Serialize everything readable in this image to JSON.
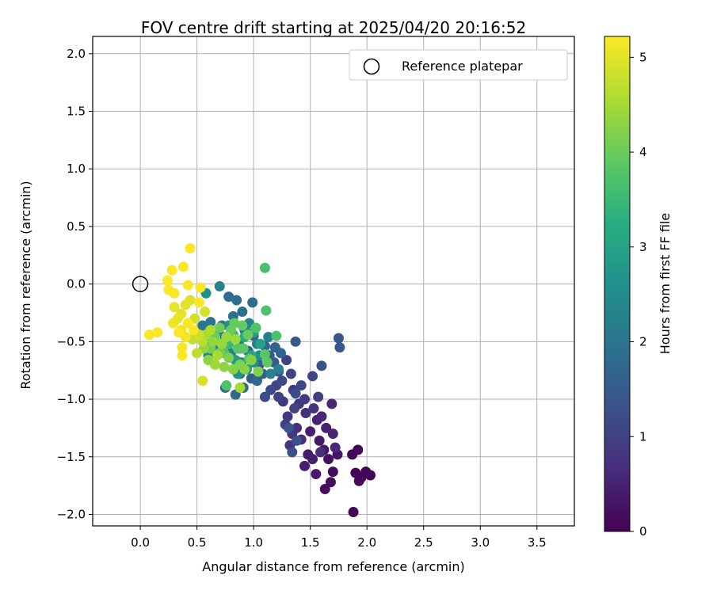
{
  "chart_data": {
    "type": "scatter",
    "title": "FOV centre drift starting at 2025/04/20 20:16:52",
    "xlabel": "Angular distance from reference (arcmin)",
    "ylabel": "Rotation from reference (arcmin)",
    "xlim": [
      -0.42,
      3.83
    ],
    "ylim": [
      -2.1,
      2.15
    ],
    "xticks": [
      "0.0",
      "0.5",
      "1.0",
      "1.5",
      "2.0",
      "2.5",
      "3.0",
      "3.5"
    ],
    "yticks": [
      "2.0",
      "1.5",
      "1.0",
      "0.5",
      "0.0",
      "−0.5",
      "−1.0",
      "−1.5",
      "−2.0"
    ],
    "grid": true,
    "legend": {
      "placement": "top-right",
      "entries": [
        "Reference platepar"
      ]
    },
    "reference_point": {
      "x": 0.0,
      "y": 0.0
    },
    "colorbar": {
      "label": "Hours from first FF file",
      "min": 0,
      "max": 5.22,
      "ticks": [
        "0",
        "1",
        "2",
        "3",
        "4",
        "5"
      ],
      "colormap": "viridis"
    },
    "points": [
      {
        "x": 1.88,
        "y": -1.98,
        "h": 0.05
      },
      {
        "x": 1.92,
        "y": -1.44,
        "h": 0.05
      },
      {
        "x": 1.95,
        "y": -1.68,
        "h": 0.05
      },
      {
        "x": 2.03,
        "y": -1.66,
        "h": 0.05
      },
      {
        "x": 1.99,
        "y": -1.63,
        "h": 0.05
      },
      {
        "x": 1.9,
        "y": -1.64,
        "h": 0.1
      },
      {
        "x": 1.87,
        "y": -1.48,
        "h": 0.1
      },
      {
        "x": 1.93,
        "y": -1.71,
        "h": 0.1
      },
      {
        "x": 1.7,
        "y": -1.63,
        "h": 0.15
      },
      {
        "x": 1.68,
        "y": -1.72,
        "h": 0.2
      },
      {
        "x": 1.63,
        "y": -1.78,
        "h": 0.2
      },
      {
        "x": 1.66,
        "y": -1.52,
        "h": 0.25
      },
      {
        "x": 1.74,
        "y": -1.48,
        "h": 0.3
      },
      {
        "x": 1.62,
        "y": -1.44,
        "h": 0.3
      },
      {
        "x": 1.55,
        "y": -1.65,
        "h": 0.35
      },
      {
        "x": 1.58,
        "y": -1.36,
        "h": 0.35
      },
      {
        "x": 1.52,
        "y": -1.52,
        "h": 0.4
      },
      {
        "x": 1.48,
        "y": -1.48,
        "h": 0.4
      },
      {
        "x": 1.45,
        "y": -1.58,
        "h": 0.45
      },
      {
        "x": 1.5,
        "y": -1.28,
        "h": 0.45
      },
      {
        "x": 1.56,
        "y": -1.18,
        "h": 0.5
      },
      {
        "x": 1.64,
        "y": -1.25,
        "h": 0.5
      },
      {
        "x": 1.6,
        "y": -1.15,
        "h": 0.55
      },
      {
        "x": 1.7,
        "y": -1.3,
        "h": 0.55
      },
      {
        "x": 1.69,
        "y": -1.04,
        "h": 0.6
      },
      {
        "x": 1.72,
        "y": -1.42,
        "h": 0.6
      },
      {
        "x": 1.59,
        "y": -1.46,
        "h": 0.65
      },
      {
        "x": 1.42,
        "y": -1.35,
        "h": 0.65
      },
      {
        "x": 1.38,
        "y": -1.25,
        "h": 0.7
      },
      {
        "x": 1.46,
        "y": -1.12,
        "h": 0.7
      },
      {
        "x": 1.53,
        "y": -1.08,
        "h": 0.75
      },
      {
        "x": 1.34,
        "y": -1.3,
        "h": 0.75
      },
      {
        "x": 1.32,
        "y": -1.4,
        "h": 0.8
      },
      {
        "x": 1.4,
        "y": -1.04,
        "h": 0.8
      },
      {
        "x": 1.3,
        "y": -1.15,
        "h": 0.85
      },
      {
        "x": 1.26,
        "y": -1.02,
        "h": 0.85
      },
      {
        "x": 1.35,
        "y": -0.92,
        "h": 0.9
      },
      {
        "x": 1.45,
        "y": -1.0,
        "h": 0.9
      },
      {
        "x": 1.57,
        "y": -0.98,
        "h": 0.95
      },
      {
        "x": 1.28,
        "y": -1.22,
        "h": 0.95
      },
      {
        "x": 1.22,
        "y": -0.98,
        "h": 1.0
      },
      {
        "x": 1.36,
        "y": -1.08,
        "h": 1.0
      },
      {
        "x": 1.29,
        "y": -0.66,
        "h": 1.0
      },
      {
        "x": 1.33,
        "y": -0.78,
        "h": 1.05
      },
      {
        "x": 1.2,
        "y": -0.88,
        "h": 1.05
      },
      {
        "x": 1.42,
        "y": -0.88,
        "h": 1.1
      },
      {
        "x": 1.52,
        "y": -0.8,
        "h": 1.1
      },
      {
        "x": 1.25,
        "y": -0.84,
        "h": 1.15
      },
      {
        "x": 1.15,
        "y": -0.92,
        "h": 1.15
      },
      {
        "x": 1.1,
        "y": -0.98,
        "h": 1.2
      },
      {
        "x": 1.37,
        "y": -0.95,
        "h": 1.2
      },
      {
        "x": 1.34,
        "y": -1.46,
        "h": 1.25
      },
      {
        "x": 1.22,
        "y": -0.76,
        "h": 1.25
      },
      {
        "x": 1.31,
        "y": -1.25,
        "h": 1.3
      },
      {
        "x": 1.38,
        "y": -1.36,
        "h": 1.3
      },
      {
        "x": 1.6,
        "y": -0.71,
        "h": 1.35
      },
      {
        "x": 1.75,
        "y": -0.47,
        "h": 1.4
      },
      {
        "x": 1.76,
        "y": -0.55,
        "h": 1.4
      },
      {
        "x": 1.37,
        "y": -0.5,
        "h": 1.45
      },
      {
        "x": 1.18,
        "y": -0.68,
        "h": 1.45
      },
      {
        "x": 1.08,
        "y": -0.78,
        "h": 1.5
      },
      {
        "x": 1.14,
        "y": -0.62,
        "h": 1.5
      },
      {
        "x": 1.05,
        "y": -0.7,
        "h": 1.55
      },
      {
        "x": 0.98,
        "y": -0.82,
        "h": 1.55
      },
      {
        "x": 0.88,
        "y": -0.78,
        "h": 1.6
      },
      {
        "x": 0.95,
        "y": -0.58,
        "h": 1.6
      },
      {
        "x": 1.0,
        "y": -0.45,
        "h": 1.65
      },
      {
        "x": 1.1,
        "y": -0.54,
        "h": 1.65
      },
      {
        "x": 1.19,
        "y": -0.55,
        "h": 1.7
      },
      {
        "x": 1.24,
        "y": -0.6,
        "h": 1.7
      },
      {
        "x": 1.03,
        "y": -0.84,
        "h": 1.75
      },
      {
        "x": 0.84,
        "y": -0.96,
        "h": 1.75
      },
      {
        "x": 0.91,
        "y": -0.9,
        "h": 1.8
      },
      {
        "x": 0.75,
        "y": -0.9,
        "h": 1.8
      },
      {
        "x": 0.99,
        "y": -0.16,
        "h": 1.85
      },
      {
        "x": 0.85,
        "y": -0.14,
        "h": 1.85
      },
      {
        "x": 0.9,
        "y": -0.24,
        "h": 1.9
      },
      {
        "x": 0.78,
        "y": -0.11,
        "h": 1.9
      },
      {
        "x": 0.82,
        "y": -0.28,
        "h": 1.95
      },
      {
        "x": 0.72,
        "y": -0.36,
        "h": 1.95
      },
      {
        "x": 0.69,
        "y": -0.42,
        "h": 2.0
      },
      {
        "x": 0.62,
        "y": -0.33,
        "h": 2.0
      },
      {
        "x": 0.55,
        "y": -0.36,
        "h": 2.05
      },
      {
        "x": 0.58,
        "y": -0.48,
        "h": 2.05
      },
      {
        "x": 0.65,
        "y": -0.52,
        "h": 2.1
      },
      {
        "x": 0.75,
        "y": -0.46,
        "h": 2.1
      },
      {
        "x": 0.87,
        "y": -0.5,
        "h": 2.15
      },
      {
        "x": 0.92,
        "y": -0.4,
        "h": 2.15
      },
      {
        "x": 1.03,
        "y": -0.52,
        "h": 2.2
      },
      {
        "x": 1.13,
        "y": -0.46,
        "h": 2.2
      },
      {
        "x": 1.15,
        "y": -0.78,
        "h": 2.25
      },
      {
        "x": 1.22,
        "y": -0.74,
        "h": 2.25
      },
      {
        "x": 0.7,
        "y": -0.02,
        "h": 2.3
      },
      {
        "x": 0.8,
        "y": -0.6,
        "h": 2.3
      },
      {
        "x": 0.89,
        "y": -0.68,
        "h": 2.35
      },
      {
        "x": 0.96,
        "y": -0.34,
        "h": 2.35
      },
      {
        "x": 0.6,
        "y": -0.62,
        "h": 2.4
      },
      {
        "x": 0.68,
        "y": -0.56,
        "h": 2.4
      },
      {
        "x": 0.78,
        "y": -0.36,
        "h": 2.5
      },
      {
        "x": 1.05,
        "y": -0.62,
        "h": 2.5
      },
      {
        "x": 1.0,
        "y": -0.68,
        "h": 2.55
      },
      {
        "x": 0.58,
        "y": -0.08,
        "h": 2.6
      },
      {
        "x": 0.86,
        "y": -0.78,
        "h": 2.6
      },
      {
        "x": 0.94,
        "y": -0.74,
        "h": 2.7
      },
      {
        "x": 0.84,
        "y": -0.66,
        "h": 2.8
      },
      {
        "x": 1.0,
        "y": -0.42,
        "h": 2.9
      },
      {
        "x": 1.06,
        "y": -0.52,
        "h": 3.0
      },
      {
        "x": 0.98,
        "y": -0.62,
        "h": 3.1
      },
      {
        "x": 0.92,
        "y": -0.46,
        "h": 3.2
      },
      {
        "x": 0.88,
        "y": -0.56,
        "h": 3.3
      },
      {
        "x": 0.82,
        "y": -0.44,
        "h": 3.4
      },
      {
        "x": 0.78,
        "y": -0.52,
        "h": 3.5
      },
      {
        "x": 1.1,
        "y": 0.14,
        "h": 3.65
      },
      {
        "x": 1.11,
        "y": -0.23,
        "h": 3.7
      },
      {
        "x": 1.2,
        "y": -0.45,
        "h": 3.7
      },
      {
        "x": 1.02,
        "y": -0.38,
        "h": 3.75
      },
      {
        "x": 0.76,
        "y": -0.88,
        "h": 3.75
      },
      {
        "x": 0.86,
        "y": -0.56,
        "h": 3.8
      },
      {
        "x": 0.74,
        "y": -0.6,
        "h": 3.8
      },
      {
        "x": 0.96,
        "y": -0.65,
        "h": 3.85
      },
      {
        "x": 1.1,
        "y": -0.61,
        "h": 3.85
      },
      {
        "x": 1.12,
        "y": -0.68,
        "h": 3.9
      },
      {
        "x": 0.91,
        "y": -0.56,
        "h": 3.9
      },
      {
        "x": 0.83,
        "y": -0.34,
        "h": 3.95
      },
      {
        "x": 0.9,
        "y": -0.36,
        "h": 3.95
      },
      {
        "x": 0.95,
        "y": -0.44,
        "h": 4.0
      },
      {
        "x": 0.8,
        "y": -0.4,
        "h": 4.0
      },
      {
        "x": 0.7,
        "y": -0.38,
        "h": 4.05
      },
      {
        "x": 0.66,
        "y": -0.46,
        "h": 4.05
      },
      {
        "x": 0.62,
        "y": -0.56,
        "h": 4.1
      },
      {
        "x": 0.7,
        "y": -0.6,
        "h": 4.1
      },
      {
        "x": 0.78,
        "y": -0.64,
        "h": 4.15
      },
      {
        "x": 0.88,
        "y": -0.7,
        "h": 4.15
      },
      {
        "x": 0.98,
        "y": -0.66,
        "h": 4.2
      },
      {
        "x": 1.04,
        "y": -0.76,
        "h": 4.2
      },
      {
        "x": 0.92,
        "y": -0.74,
        "h": 4.25
      },
      {
        "x": 0.82,
        "y": -0.74,
        "h": 4.25
      },
      {
        "x": 0.74,
        "y": -0.72,
        "h": 4.3
      },
      {
        "x": 0.6,
        "y": -0.66,
        "h": 4.3
      },
      {
        "x": 0.56,
        "y": -0.56,
        "h": 4.35
      },
      {
        "x": 0.64,
        "y": -0.5,
        "h": 4.35
      },
      {
        "x": 0.72,
        "y": -0.52,
        "h": 4.4
      },
      {
        "x": 0.76,
        "y": -0.46,
        "h": 4.4
      },
      {
        "x": 0.84,
        "y": -0.48,
        "h": 4.45
      },
      {
        "x": 0.66,
        "y": -0.7,
        "h": 4.45
      },
      {
        "x": 0.88,
        "y": -0.9,
        "h": 4.5
      },
      {
        "x": 0.58,
        "y": -0.44,
        "h": 4.5
      },
      {
        "x": 0.68,
        "y": -0.62,
        "h": 4.55
      },
      {
        "x": 0.62,
        "y": -0.4,
        "h": 4.6
      },
      {
        "x": 0.55,
        "y": -0.5,
        "h": 4.65
      },
      {
        "x": 0.5,
        "y": -0.6,
        "h": 4.7
      },
      {
        "x": 0.46,
        "y": -0.48,
        "h": 4.75
      },
      {
        "x": 0.52,
        "y": -0.44,
        "h": 4.8
      },
      {
        "x": 0.48,
        "y": -0.3,
        "h": 4.85
      },
      {
        "x": 0.57,
        "y": -0.24,
        "h": 4.9
      },
      {
        "x": 0.55,
        "y": -0.84,
        "h": 4.9
      },
      {
        "x": 0.44,
        "y": -0.14,
        "h": 4.95
      },
      {
        "x": 0.4,
        "y": -0.18,
        "h": 5.0
      },
      {
        "x": 0.36,
        "y": -0.26,
        "h": 5.0
      },
      {
        "x": 0.33,
        "y": -0.3,
        "h": 5.05
      },
      {
        "x": 0.3,
        "y": -0.2,
        "h": 5.05
      },
      {
        "x": 0.29,
        "y": -0.34,
        "h": 5.1
      },
      {
        "x": 0.36,
        "y": -0.4,
        "h": 5.1
      },
      {
        "x": 0.4,
        "y": -0.46,
        "h": 5.15
      },
      {
        "x": 0.37,
        "y": -0.55,
        "h": 5.15
      },
      {
        "x": 0.37,
        "y": -0.62,
        "h": 5.2
      },
      {
        "x": 0.42,
        "y": -0.01,
        "h": 5.2
      },
      {
        "x": 0.53,
        "y": -0.03,
        "h": 5.2
      },
      {
        "x": 0.38,
        "y": 0.15,
        "h": 5.2
      },
      {
        "x": 0.28,
        "y": 0.12,
        "h": 5.2
      },
      {
        "x": 0.24,
        "y": 0.03,
        "h": 5.2
      },
      {
        "x": 0.25,
        "y": -0.05,
        "h": 5.2
      },
      {
        "x": 0.3,
        "y": -0.08,
        "h": 5.2
      },
      {
        "x": 0.44,
        "y": 0.31,
        "h": 5.2
      },
      {
        "x": 0.15,
        "y": -0.42,
        "h": 5.2
      },
      {
        "x": 0.08,
        "y": -0.44,
        "h": 5.2
      },
      {
        "x": 0.34,
        "y": -0.42,
        "h": 5.2
      },
      {
        "x": 0.42,
        "y": -0.34,
        "h": 5.2
      },
      {
        "x": 0.47,
        "y": -0.4,
        "h": 5.2
      },
      {
        "x": 0.52,
        "y": -0.16,
        "h": 5.2
      }
    ]
  }
}
